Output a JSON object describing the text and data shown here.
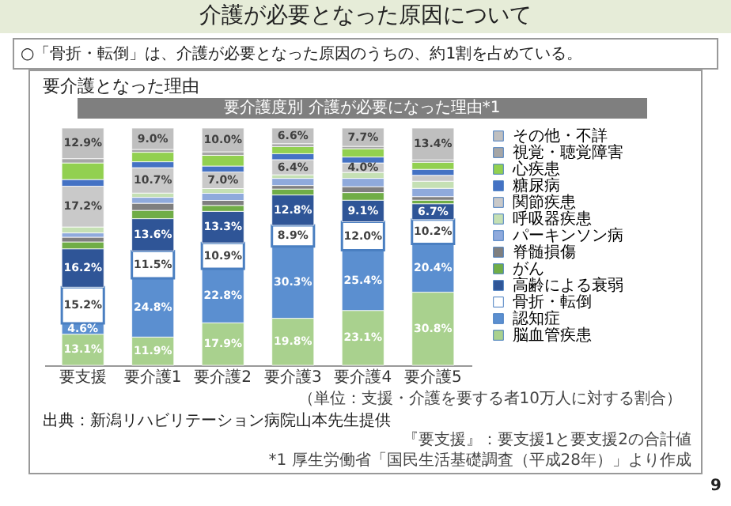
{
  "chart_data": {
    "type": "bar",
    "stacked": true,
    "title": "介護が必要となった原因について",
    "subtitle": "○「骨折・転倒」は、介護が必要となった原因のうちの、約1割を占めている。",
    "annotations": [
      "要介護となった理由",
      "要介護度別 介護が必要になった理由*1",
      "（単位：支援・介護を要する者10万人に対する割合）",
      "出典：新潟リハビリテーション病院山本先生提供",
      "『要支援』：要支援1と要支援2の合計値",
      "*1 厚生労働省「国民生活基礎調査（平成28年）」より作成",
      "9"
    ],
    "categories": [
      "要支援",
      "要介護1",
      "要介護2",
      "要介護3",
      "要介護4",
      "要介護5"
    ],
    "ylim": [
      0,
      100
    ],
    "tick_labels": "x",
    "legend": "right",
    "series": [
      {
        "name": "脳血管疾患",
        "color": "#a9d18e",
        "values": [
          13.1,
          11.9,
          17.9,
          19.8,
          23.1,
          30.8
        ],
        "value_labels": [
          "13.1%",
          "11.9%",
          "17.9%",
          "19.8%",
          "23.1%",
          "30.8%"
        ]
      },
      {
        "name": "認知症",
        "color": "#5b8fd0",
        "values": [
          4.6,
          24.8,
          22.8,
          30.3,
          25.4,
          20.4
        ],
        "value_labels": [
          "4.6%",
          "24.8%",
          "22.8%",
          "30.3%",
          "25.4%",
          "20.4%"
        ]
      },
      {
        "name": "骨折・転倒",
        "color": "#ffffff",
        "values": [
          15.2,
          11.5,
          10.9,
          8.9,
          12.0,
          10.2
        ],
        "value_labels": [
          "15.2%",
          "11.5%",
          "10.9%",
          "8.9%",
          "12.0%",
          "10.2%"
        ]
      },
      {
        "name": "高齢による衰弱",
        "color": "#2f5597",
        "values": [
          16.2,
          13.6,
          13.3,
          12.8,
          9.1,
          6.7
        ],
        "value_labels": [
          "16.2%",
          "13.6%",
          "13.3%",
          "12.8%",
          "9.1%",
          "6.7%"
        ]
      },
      {
        "name": "がん",
        "color": "#70ad47",
        "values": [
          2.9,
          3.5,
          2.5,
          2.5,
          3.2,
          1.5
        ]
      },
      {
        "name": "脊髄損傷",
        "color": "#7f7f7f",
        "values": [
          2.0,
          3.0,
          2.1,
          1.5,
          2.5,
          1.5
        ]
      },
      {
        "name": "パーキンソン病",
        "color": "#8faadc",
        "values": [
          1.8,
          2.5,
          3.0,
          3.0,
          3.5,
          3.5
        ]
      },
      {
        "name": "呼吸器疾患",
        "color": "#c5e0b4",
        "values": [
          2.5,
          1.8,
          2.0,
          1.5,
          2.5,
          3.0
        ]
      },
      {
        "name": "関節疾患",
        "color": "#c9c9c9",
        "values": [
          17.2,
          10.7,
          7.0,
          6.4,
          4.0,
          2.5
        ],
        "value_labels": [
          "17.2%",
          "10.7%",
          "7.0%",
          "6.4%",
          "4.0%",
          null
        ]
      },
      {
        "name": "糖尿病",
        "color": "#4472c4",
        "values": [
          2.8,
          2.5,
          2.5,
          2.5,
          2.5,
          2.5
        ]
      },
      {
        "name": "心疾患",
        "color": "#92d050",
        "values": [
          7.0,
          4.0,
          4.5,
          3.0,
          3.5,
          3.0
        ]
      },
      {
        "name": "視覚・聴覚障害",
        "color": "#a6a6a6",
        "values": [
          1.8,
          1.2,
          1.5,
          1.2,
          1.0,
          1.0
        ]
      },
      {
        "name": "その他・不詳",
        "color": "#bfbfbf",
        "values": [
          12.9,
          9.0,
          10.0,
          6.6,
          7.7,
          13.4
        ],
        "value_labels": [
          "12.9%",
          "9.0%",
          "10.0%",
          "6.6%",
          "7.7%",
          "13.4%"
        ]
      }
    ]
  }
}
